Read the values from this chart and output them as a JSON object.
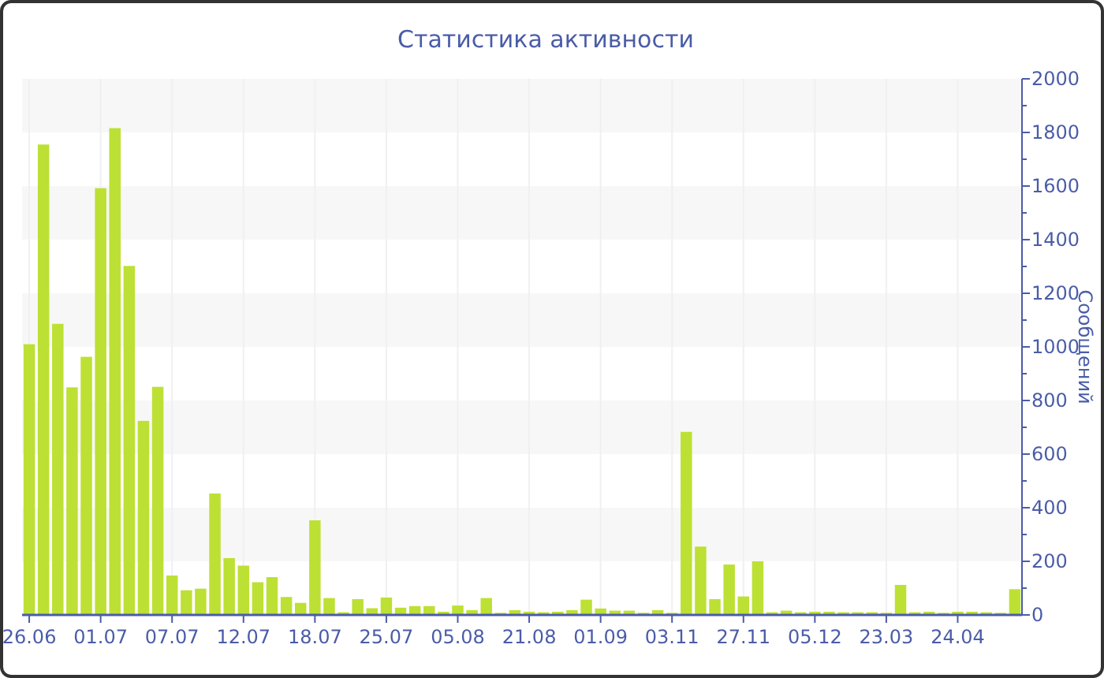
{
  "chart_data": {
    "type": "bar",
    "title": "Статистика активности",
    "ylabel": "Сообщений",
    "categories": [
      "26.06",
      null,
      null,
      null,
      null,
      "01.07",
      null,
      null,
      null,
      null,
      "07.07",
      null,
      null,
      null,
      null,
      "12.07",
      null,
      null,
      null,
      null,
      "18.07",
      null,
      null,
      null,
      null,
      "25.07",
      null,
      null,
      null,
      null,
      "05.08",
      null,
      null,
      null,
      null,
      "21.08",
      null,
      null,
      null,
      null,
      "01.09",
      null,
      null,
      null,
      null,
      "03.11",
      null,
      null,
      null,
      null,
      "27.11",
      null,
      null,
      null,
      null,
      "05.12",
      null,
      null,
      null,
      null,
      "23.03",
      null,
      null,
      null,
      null,
      "24.04",
      null,
      null,
      null,
      null
    ],
    "values": [
      1010,
      1755,
      1086,
      849,
      963,
      1592,
      1816,
      1302,
      724,
      851,
      147,
      92,
      98,
      453,
      212,
      184,
      122,
      141,
      67,
      45,
      353,
      63,
      10,
      59,
      25,
      65,
      27,
      33,
      33,
      12,
      35,
      18,
      63,
      8,
      18,
      12,
      10,
      12,
      18,
      57,
      24,
      16,
      16,
      8,
      18,
      8,
      683,
      255,
      59,
      188,
      69,
      200,
      10,
      16,
      10,
      12,
      12,
      10,
      10,
      10,
      8,
      112,
      10,
      12,
      8,
      12,
      12,
      10,
      8,
      96
    ],
    "color": "#bde034",
    "ylim": [
      0,
      2000
    ],
    "yticks": [
      0,
      200,
      400,
      600,
      800,
      1000,
      1200,
      1400,
      1600,
      1800,
      2000
    ],
    "grid": true
  }
}
